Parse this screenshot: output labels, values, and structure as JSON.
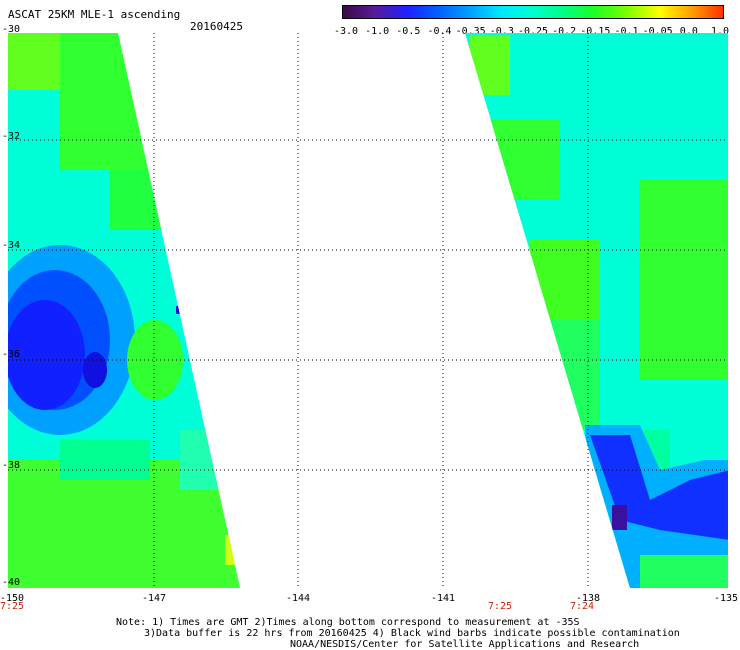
{
  "title": "ASCAT 25KM MLE-1 ascending",
  "date": "20160425",
  "colorbar": {
    "stops": [
      "#3b0a45",
      "#5a1a9a",
      "#2020ff",
      "#0060ff",
      "#00a0ff",
      "#00e8ff",
      "#00ffd0",
      "#00ff80",
      "#20ff20",
      "#80ff00",
      "#ffff00",
      "#ffa000",
      "#ff3000"
    ],
    "labels": [
      "-3.0",
      "-1.0",
      "-0.5",
      "-0.4",
      "-0.35",
      "-0.3",
      "-0.25",
      "-0.2",
      "-0.15",
      "-0.1",
      "-0.05",
      "0.0",
      "1.0"
    ]
  },
  "y_ticks": [
    "-30",
    "-32",
    "-34",
    "-36",
    "-38",
    "-40"
  ],
  "x_ticks": [
    "-150",
    "-147",
    "-144",
    "-141",
    "-138",
    "-135"
  ],
  "times": [
    "7:25",
    "7:25",
    "7:24"
  ],
  "notes": [
    "Note: 1) Times are GMT 2)Times along bottom correspond to measurement at -35S",
    "3)Data buffer is 22 hrs from 20160425 4) Black wind barbs indicate possible contamination",
    "NOAA/NESDIS/Center for Satellite Applications and Research"
  ],
  "colors": {
    "swath_cyan": "#00ffe0",
    "swath_green": "#30ff30",
    "swath_blue": "#1040ff",
    "swath_purple": "#3a10a0",
    "time_red": "#cc2200"
  }
}
